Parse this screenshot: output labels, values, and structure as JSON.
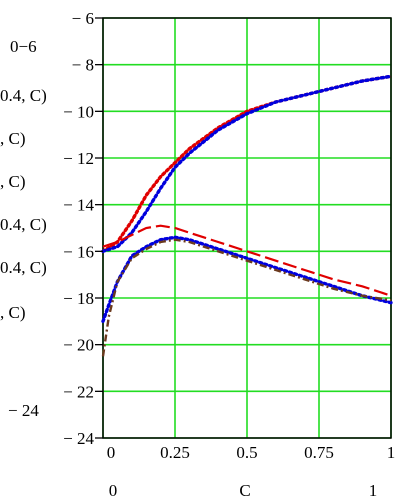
{
  "chart_data": {
    "type": "line",
    "xlim": [
      0,
      1
    ],
    "ylim": [
      -24,
      -6
    ],
    "x_ticks": [
      "0",
      "0.25",
      "0.5",
      "0.75",
      "1"
    ],
    "y_ticks": [
      "-6",
      "-8",
      "-10",
      "-12",
      "-14",
      "-16",
      "-18",
      "-20",
      "-22",
      "-24"
    ],
    "x_axis_text": {
      "left": "0",
      "center": "C",
      "right": "1"
    },
    "y_axis_text": {
      "top": "0−6",
      "bottom": "− 24"
    },
    "left_labels": [
      "0.4, C)",
      ", C)",
      ", C)",
      "0.4, C)",
      "0.4, C)",
      ", C)"
    ],
    "grid": true,
    "series": [
      {
        "color": "#e00000",
        "style": "dotted",
        "x": [
          0,
          0.05,
          0.1,
          0.15,
          0.2,
          0.25,
          0.3,
          0.4,
          0.5,
          0.6,
          0.7,
          0.8,
          0.9,
          1.0
        ],
        "y": [
          -16.0,
          -15.6,
          -14.7,
          -13.6,
          -12.8,
          -12.2,
          -11.6,
          -10.7,
          -10.0,
          -9.6,
          -9.3,
          -9.0,
          -8.7,
          -8.5
        ]
      },
      {
        "color": "#0000dd",
        "style": "dotted",
        "x": [
          0,
          0.05,
          0.1,
          0.15,
          0.2,
          0.25,
          0.3,
          0.4,
          0.5,
          0.6,
          0.7,
          0.8,
          0.9,
          1.0
        ],
        "y": [
          -16.0,
          -15.8,
          -15.2,
          -14.3,
          -13.3,
          -12.4,
          -11.8,
          -10.8,
          -10.1,
          -9.6,
          -9.3,
          -9.0,
          -8.7,
          -8.5
        ]
      },
      {
        "color": "#e00000",
        "style": "dashed",
        "x": [
          0,
          0.05,
          0.1,
          0.15,
          0.2,
          0.25,
          0.3,
          0.4,
          0.5,
          0.6,
          0.7,
          0.8,
          0.9,
          1.0
        ],
        "y": [
          -15.8,
          -15.6,
          -15.3,
          -15.0,
          -14.9,
          -15.0,
          -15.2,
          -15.6,
          -16.0,
          -16.4,
          -16.8,
          -17.2,
          -17.5,
          -17.9
        ]
      },
      {
        "color": "#0000dd",
        "style": "dotted",
        "x": [
          0,
          0.02,
          0.05,
          0.1,
          0.15,
          0.2,
          0.25,
          0.3,
          0.4,
          0.5,
          0.6,
          0.7,
          0.8,
          0.9,
          1.0
        ],
        "y": [
          -19.0,
          -18.3,
          -17.3,
          -16.2,
          -15.8,
          -15.5,
          -15.4,
          -15.5,
          -15.9,
          -16.3,
          -16.7,
          -17.1,
          -17.5,
          -17.9,
          -18.2
        ]
      },
      {
        "color": "#6b3a1e",
        "style": "dash-dot",
        "x": [
          0,
          0.02,
          0.05,
          0.1,
          0.15,
          0.2,
          0.25,
          0.3,
          0.4,
          0.5,
          0.6,
          0.7,
          0.8,
          0.9,
          1.0
        ],
        "y": [
          -20.5,
          -18.8,
          -17.3,
          -16.3,
          -15.9,
          -15.6,
          -15.5,
          -15.6,
          -16.0,
          -16.4,
          -16.8,
          -17.2,
          -17.6,
          -17.9,
          -18.1
        ]
      }
    ]
  }
}
